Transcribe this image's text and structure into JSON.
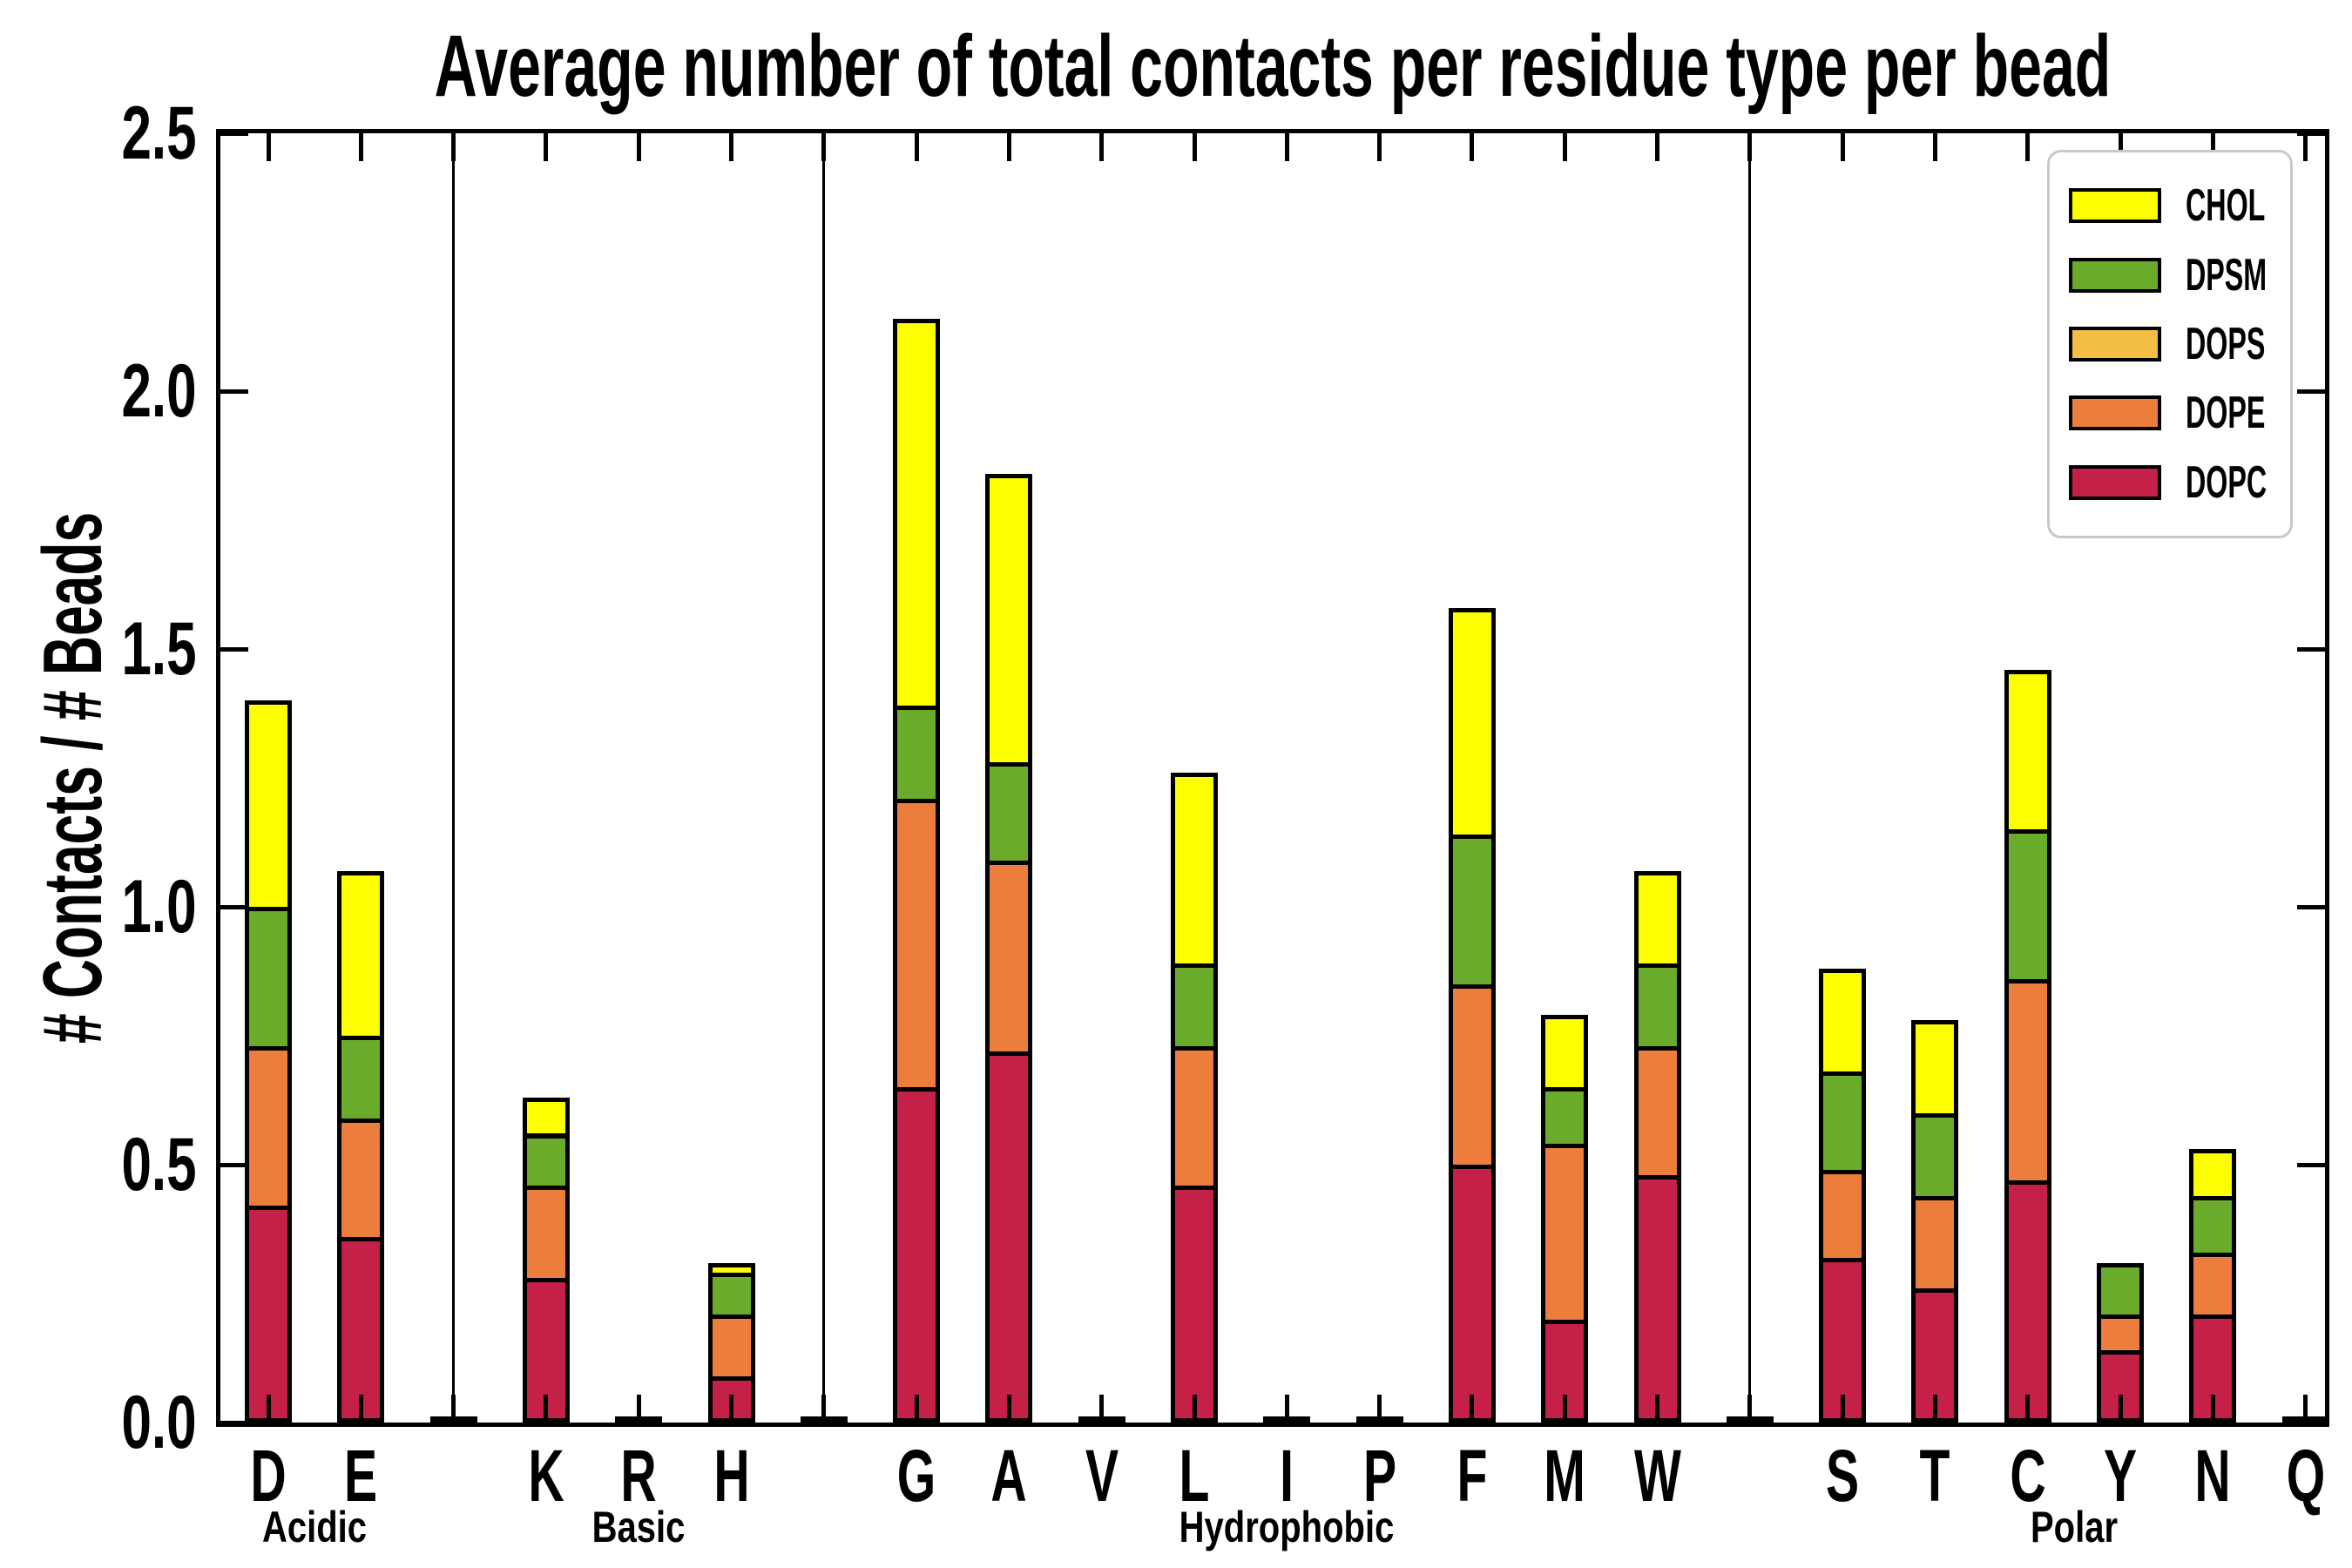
{
  "title": "Average number of total contacts per residue type per bead",
  "y_axis": {
    "label": "# Contacts / # Beads",
    "tick_labels": [
      "0.0",
      "0.5",
      "1.0",
      "1.5",
      "2.0",
      "2.5"
    ]
  },
  "legend": [
    {
      "label": "CHOL",
      "color": "#FDFF00"
    },
    {
      "label": "DPSM",
      "color": "#6BAB2B"
    },
    {
      "label": "DOPS",
      "color": "#F4BD45"
    },
    {
      "label": "DOPE",
      "color": "#ED7D3C"
    },
    {
      "label": "DOPC",
      "color": "#C42048"
    }
  ],
  "chart_data": {
    "type": "bar",
    "stacked": true,
    "title": "Average number of total contacts per residue type per bead",
    "xlabel": "",
    "ylabel": "# Contacts / # Beads",
    "ylim": [
      0,
      2.5
    ],
    "ytick_step": 0.5,
    "grid": false,
    "legend_position": "upper right",
    "group_dividers": true,
    "groups": [
      {
        "label": "Acidic",
        "residues": [
          "D",
          "E"
        ]
      },
      {
        "label": "Basic",
        "residues": [
          "K",
          "R",
          "H"
        ]
      },
      {
        "label": "Hydrophobic",
        "residues": [
          "G",
          "A",
          "V",
          "L",
          "I",
          "P",
          "F",
          "M",
          "W"
        ]
      },
      {
        "label": "Polar",
        "residues": [
          "S",
          "T",
          "C",
          "Y",
          "N",
          "Q"
        ]
      }
    ],
    "categories": [
      "D",
      "E",
      "K",
      "R",
      "H",
      "G",
      "A",
      "V",
      "L",
      "I",
      "P",
      "F",
      "M",
      "W",
      "S",
      "T",
      "C",
      "Y",
      "N",
      "Q"
    ],
    "series_order_bottom_to_top": [
      "DOPC",
      "DOPE",
      "DOPS",
      "DPSM",
      "CHOL"
    ],
    "series": [
      {
        "name": "DOPC",
        "color": "#C42048",
        "values": [
          0.42,
          0.36,
          0.28,
          0.0,
          0.09,
          0.65,
          0.72,
          0.0,
          0.46,
          0.0,
          0.0,
          0.5,
          0.2,
          0.48,
          0.32,
          0.26,
          0.47,
          0.14,
          0.21,
          0.0
        ]
      },
      {
        "name": "DOPE",
        "color": "#ED7D3C",
        "values": [
          0.31,
          0.23,
          0.18,
          0.0,
          0.12,
          0.56,
          0.37,
          0.0,
          0.27,
          0.0,
          0.0,
          0.35,
          0.34,
          0.25,
          0.17,
          0.18,
          0.39,
          0.07,
          0.12,
          0.0
        ]
      },
      {
        "name": "DOPS",
        "color": "#F4BD45",
        "values": [
          0.0,
          0.0,
          0.0,
          0.0,
          0.0,
          0.0,
          0.0,
          0.0,
          0.0,
          0.0,
          0.0,
          0.0,
          0.0,
          0.0,
          0.0,
          0.0,
          0.0,
          0.0,
          0.0,
          0.0
        ]
      },
      {
        "name": "DPSM",
        "color": "#6BAB2B",
        "values": [
          0.27,
          0.16,
          0.1,
          0.0,
          0.08,
          0.18,
          0.19,
          0.0,
          0.16,
          0.0,
          0.0,
          0.29,
          0.11,
          0.16,
          0.19,
          0.16,
          0.29,
          0.1,
          0.11,
          0.0
        ]
      },
      {
        "name": "CHOL",
        "color": "#FDFF00",
        "values": [
          0.4,
          0.32,
          0.07,
          0.0,
          0.02,
          0.75,
          0.56,
          0.0,
          0.37,
          0.0,
          0.0,
          0.44,
          0.14,
          0.18,
          0.2,
          0.18,
          0.31,
          0.0,
          0.09,
          0.0
        ]
      }
    ],
    "totals": [
      1.4,
      1.07,
      0.63,
      0.0,
      0.31,
      2.14,
      1.84,
      0.0,
      1.26,
      0.0,
      0.0,
      1.58,
      0.79,
      1.07,
      0.88,
      0.78,
      1.46,
      0.31,
      0.53,
      0.0
    ]
  }
}
